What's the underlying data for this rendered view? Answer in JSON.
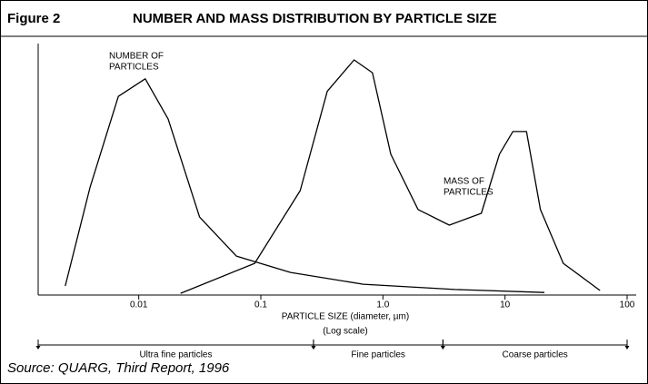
{
  "chart_data": {
    "type": "line",
    "figure_label": "Figure 2",
    "title": "NUMBER AND MASS DISTRIBUTION BY PARTICLE SIZE",
    "x_label": "PARTICLE SIZE (diameter, µm)",
    "x_scale_note": "(Log scale)",
    "log_x": true,
    "xlim": [
      0.0015,
      100
    ],
    "xticks": [
      0.01,
      0.1,
      {
        "value": 1,
        "label": "1.0"
      },
      10,
      100
    ],
    "ylim": [
      0,
      100
    ],
    "series": [
      {
        "name": "NUMBER OF PARTICLES",
        "label_lines": [
          "NUMBER OF",
          "PARTICLES"
        ],
        "color": "#000000",
        "x": [
          0.0025,
          0.004,
          0.0068,
          0.0113,
          0.0174,
          0.0315,
          0.063,
          0.175,
          0.69,
          3.9,
          21
        ],
        "values": [
          3.6,
          43,
          79,
          86,
          70,
          31,
          15.5,
          9,
          4.3,
          2.2,
          1
        ]
      },
      {
        "name": "MASS OF PARTICLES",
        "label_lines": [
          "MASS OF",
          "PARTICLES"
        ],
        "color": "#000000",
        "x": [
          0.022,
          0.089,
          0.21,
          0.35,
          0.58,
          0.82,
          1.16,
          1.94,
          3.5,
          6.4,
          9,
          11.6,
          15,
          19.5,
          30,
          60
        ],
        "values": [
          0.7,
          12.6,
          41.5,
          81,
          93.5,
          88.4,
          56,
          34,
          27.8,
          32.5,
          56,
          65,
          65,
          34,
          12.6,
          1.8
        ]
      }
    ],
    "ranges": [
      {
        "label": "Ultra fine particles",
        "from": 0.0015,
        "to": 0.27
      },
      {
        "label": "Fine particles",
        "from": 0.27,
        "to": 3.1
      },
      {
        "label": "Coarse particles",
        "from": 3.1,
        "to": 100
      }
    ],
    "source": "Source: QUARG, Third Report, 1996"
  }
}
